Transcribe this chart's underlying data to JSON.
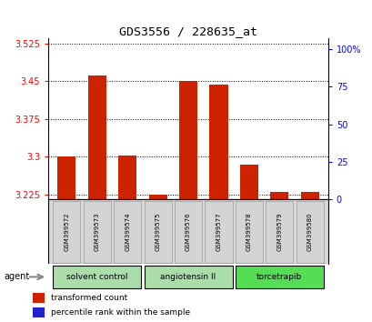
{
  "title": "GDS3556 / 228635_at",
  "samples": [
    "GSM399572",
    "GSM399573",
    "GSM399574",
    "GSM399575",
    "GSM399576",
    "GSM399577",
    "GSM399578",
    "GSM399579",
    "GSM399580"
  ],
  "red_values": [
    3.3,
    3.462,
    3.302,
    3.225,
    3.45,
    3.443,
    3.285,
    3.23,
    3.23
  ],
  "blue_values": [
    0.1,
    0.12,
    0.09,
    0.05,
    0.12,
    0.12,
    0.1,
    0.06,
    0.06
  ],
  "baseline": 3.215,
  "ylim_left": [
    3.215,
    3.535
  ],
  "yticks_left": [
    3.225,
    3.3,
    3.375,
    3.45,
    3.525
  ],
  "yticks_right": [
    0,
    25,
    50,
    75,
    100
  ],
  "ylim_right": [
    0,
    106.67
  ],
  "bar_width": 0.6,
  "red_color": "#cc2200",
  "blue_color": "#2222cc",
  "agent_groups": [
    {
      "label": "solvent control",
      "start": 0,
      "end": 3,
      "color": "#aaddaa"
    },
    {
      "label": "angiotensin II",
      "start": 3,
      "end": 6,
      "color": "#aaddaa"
    },
    {
      "label": "torcetrapib",
      "start": 6,
      "end": 9,
      "color": "#44cc44"
    }
  ],
  "agent_label": "agent",
  "legend_red": "transformed count",
  "legend_blue": "percentile rank within the sample",
  "bg_color": "#ffffff"
}
